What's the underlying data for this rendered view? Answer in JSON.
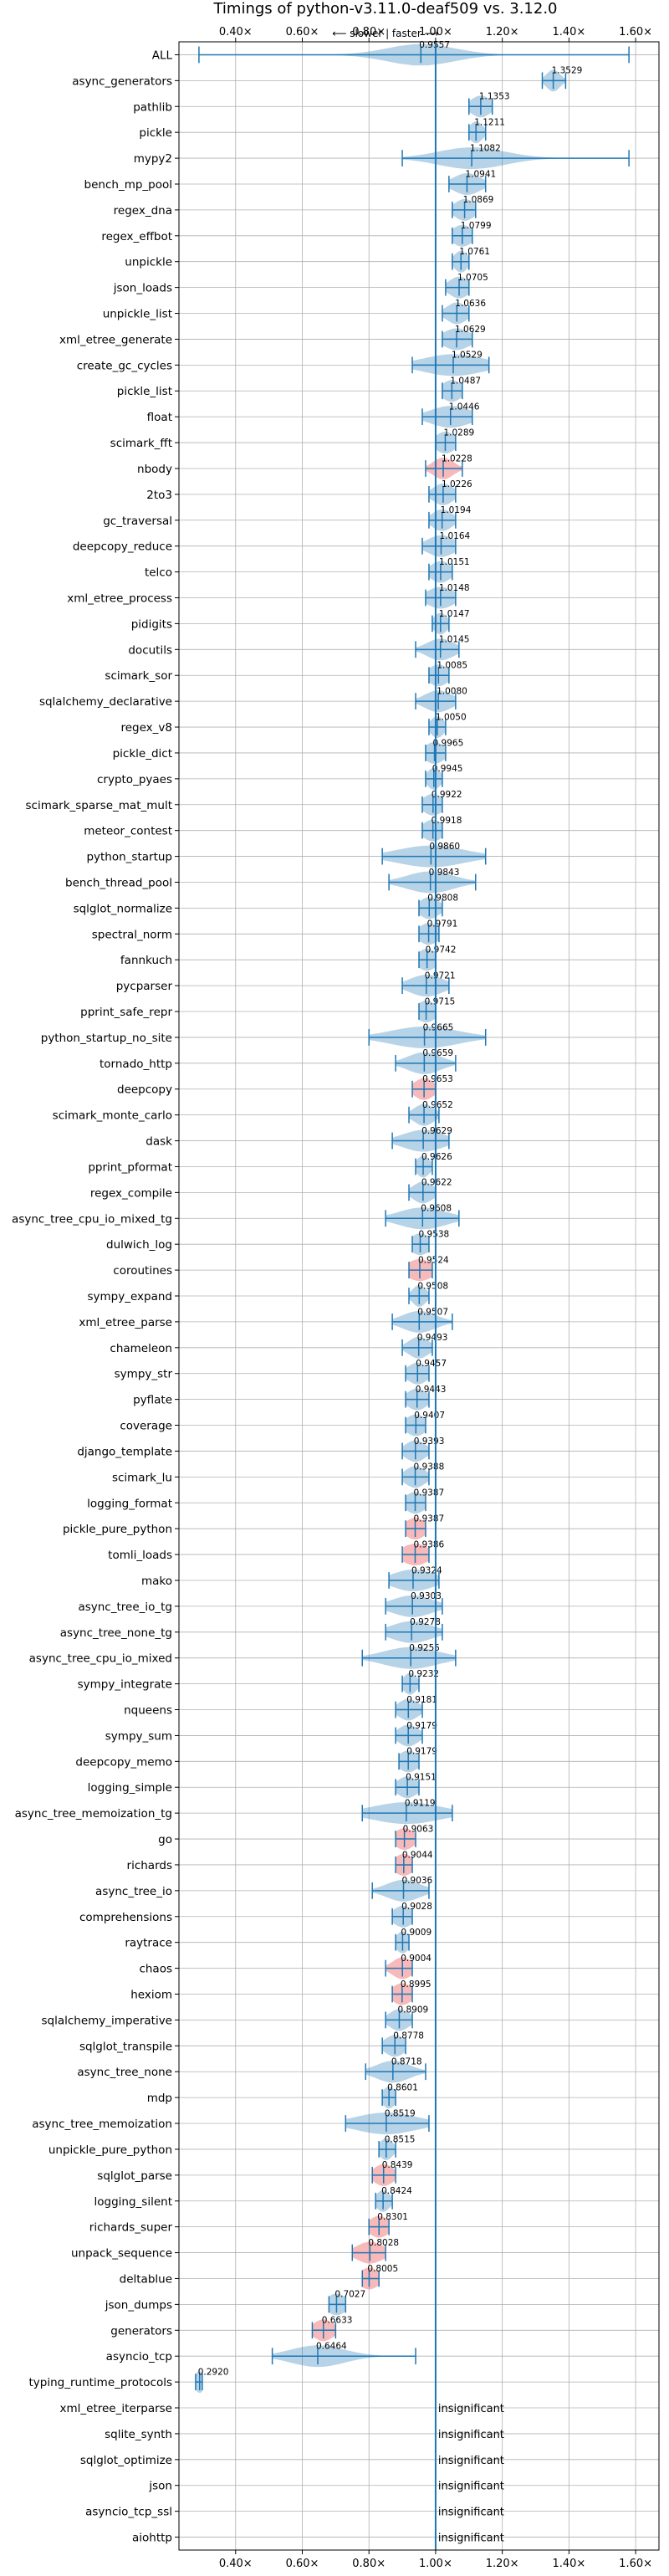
{
  "chart_data": {
    "type": "violin",
    "title": "Timings of python-v3.11.0-deaf509 vs. 3.12.0",
    "subtitle": "⟵ slower | faster ⟶",
    "x_ticks": [
      0.4,
      0.6,
      0.8,
      1.0,
      1.2,
      1.4,
      1.6
    ],
    "x_tick_labels": [
      "0.40×",
      "0.60×",
      "0.80×",
      "1.00×",
      "1.20×",
      "1.40×",
      "1.60×"
    ],
    "xlim": [
      0.23,
      1.67
    ],
    "reference_line": 1.0,
    "grid": true,
    "insignificant_text": "insignificant",
    "benchmarks": [
      {
        "name": "ALL",
        "value": 0.9557,
        "label": "0.9557",
        "lo": 0.29,
        "hi": 1.58,
        "spread": 0.1,
        "highlight": false
      },
      {
        "name": "async_generators",
        "value": 1.3529,
        "label": "1.3529",
        "lo": 1.32,
        "hi": 1.39,
        "spread": 0.02,
        "highlight": false
      },
      {
        "name": "pathlib",
        "value": 1.1353,
        "label": "1.1353",
        "lo": 1.1,
        "hi": 1.17,
        "spread": 0.03,
        "highlight": false
      },
      {
        "name": "pickle",
        "value": 1.1211,
        "label": "1.1211",
        "lo": 1.1,
        "hi": 1.15,
        "spread": 0.02,
        "highlight": false
      },
      {
        "name": "mypy2",
        "value": 1.1082,
        "label": "1.1082",
        "lo": 0.9,
        "hi": 1.58,
        "spread": 0.1,
        "highlight": false
      },
      {
        "name": "bench_mp_pool",
        "value": 1.0941,
        "label": "1.0941",
        "lo": 1.04,
        "hi": 1.15,
        "spread": 0.04,
        "highlight": false
      },
      {
        "name": "regex_dna",
        "value": 1.0869,
        "label": "1.0869",
        "lo": 1.05,
        "hi": 1.12,
        "spread": 0.03,
        "highlight": false
      },
      {
        "name": "regex_effbot",
        "value": 1.0799,
        "label": "1.0799",
        "lo": 1.05,
        "hi": 1.11,
        "spread": 0.03,
        "highlight": false
      },
      {
        "name": "unpickle",
        "value": 1.0761,
        "label": "1.0761",
        "lo": 1.05,
        "hi": 1.1,
        "spread": 0.02,
        "highlight": false
      },
      {
        "name": "json_loads",
        "value": 1.0705,
        "label": "1.0705",
        "lo": 1.03,
        "hi": 1.1,
        "spread": 0.03,
        "highlight": false
      },
      {
        "name": "unpickle_list",
        "value": 1.0636,
        "label": "1.0636",
        "lo": 1.02,
        "hi": 1.1,
        "spread": 0.03,
        "highlight": false
      },
      {
        "name": "xml_etree_generate",
        "value": 1.0629,
        "label": "1.0629",
        "lo": 1.02,
        "hi": 1.11,
        "spread": 0.04,
        "highlight": false
      },
      {
        "name": "create_gc_cycles",
        "value": 1.0529,
        "label": "1.0529",
        "lo": 0.93,
        "hi": 1.16,
        "spread": 0.09,
        "highlight": false
      },
      {
        "name": "pickle_list",
        "value": 1.0487,
        "label": "1.0487",
        "lo": 1.02,
        "hi": 1.08,
        "spread": 0.03,
        "highlight": false
      },
      {
        "name": "float",
        "value": 1.0446,
        "label": "1.0446",
        "lo": 0.96,
        "hi": 1.11,
        "spread": 0.06,
        "highlight": false
      },
      {
        "name": "scimark_fft",
        "value": 1.0289,
        "label": "1.0289",
        "lo": 1.0,
        "hi": 1.06,
        "spread": 0.03,
        "highlight": false
      },
      {
        "name": "nbody",
        "value": 1.0228,
        "label": "1.0228",
        "lo": 0.97,
        "hi": 1.08,
        "spread": 0.03,
        "highlight": true
      },
      {
        "name": "2to3",
        "value": 1.0226,
        "label": "1.0226",
        "lo": 0.98,
        "hi": 1.06,
        "spread": 0.03,
        "highlight": false
      },
      {
        "name": "gc_traversal",
        "value": 1.0194,
        "label": "1.0194",
        "lo": 0.98,
        "hi": 1.06,
        "spread": 0.03,
        "highlight": false
      },
      {
        "name": "deepcopy_reduce",
        "value": 1.0164,
        "label": "1.0164",
        "lo": 0.96,
        "hi": 1.06,
        "spread": 0.04,
        "highlight": false
      },
      {
        "name": "telco",
        "value": 1.0151,
        "label": "1.0151",
        "lo": 0.98,
        "hi": 1.05,
        "spread": 0.03,
        "highlight": false
      },
      {
        "name": "xml_etree_process",
        "value": 1.0148,
        "label": "1.0148",
        "lo": 0.97,
        "hi": 1.06,
        "spread": 0.04,
        "highlight": false
      },
      {
        "name": "pidigits",
        "value": 1.0147,
        "label": "1.0147",
        "lo": 0.99,
        "hi": 1.04,
        "spread": 0.02,
        "highlight": false
      },
      {
        "name": "docutils",
        "value": 1.0145,
        "label": "1.0145",
        "lo": 0.94,
        "hi": 1.07,
        "spread": 0.04,
        "highlight": false
      },
      {
        "name": "scimark_sor",
        "value": 1.0085,
        "label": "1.0085",
        "lo": 0.98,
        "hi": 1.04,
        "spread": 0.03,
        "highlight": false
      },
      {
        "name": "sqlalchemy_declarative",
        "value": 1.008,
        "label": "1.0080",
        "lo": 0.94,
        "hi": 1.06,
        "spread": 0.04,
        "highlight": false
      },
      {
        "name": "regex_v8",
        "value": 1.005,
        "label": "1.0050",
        "lo": 0.98,
        "hi": 1.03,
        "spread": 0.02,
        "highlight": false
      },
      {
        "name": "pickle_dict",
        "value": 0.9965,
        "label": "0.9965",
        "lo": 0.97,
        "hi": 1.03,
        "spread": 0.03,
        "highlight": false
      },
      {
        "name": "crypto_pyaes",
        "value": 0.9945,
        "label": "0.9945",
        "lo": 0.97,
        "hi": 1.02,
        "spread": 0.02,
        "highlight": false
      },
      {
        "name": "scimark_sparse_mat_mult",
        "value": 0.9922,
        "label": "0.9922",
        "lo": 0.96,
        "hi": 1.02,
        "spread": 0.03,
        "highlight": false
      },
      {
        "name": "meteor_contest",
        "value": 0.9918,
        "label": "0.9918",
        "lo": 0.96,
        "hi": 1.02,
        "spread": 0.03,
        "highlight": false
      },
      {
        "name": "python_startup",
        "value": 0.986,
        "label": "0.9860",
        "lo": 0.84,
        "hi": 1.15,
        "spread": 0.1,
        "highlight": false
      },
      {
        "name": "bench_thread_pool",
        "value": 0.9843,
        "label": "0.9843",
        "lo": 0.86,
        "hi": 1.12,
        "spread": 0.07,
        "highlight": false
      },
      {
        "name": "sqlglot_normalize",
        "value": 0.9808,
        "label": "0.9808",
        "lo": 0.95,
        "hi": 1.02,
        "spread": 0.03,
        "highlight": false
      },
      {
        "name": "spectral_norm",
        "value": 0.9791,
        "label": "0.9791",
        "lo": 0.95,
        "hi": 1.01,
        "spread": 0.03,
        "highlight": false
      },
      {
        "name": "fannkuch",
        "value": 0.9742,
        "label": "0.9742",
        "lo": 0.95,
        "hi": 1.0,
        "spread": 0.03,
        "highlight": false
      },
      {
        "name": "pycparser",
        "value": 0.9721,
        "label": "0.9721",
        "lo": 0.9,
        "hi": 1.04,
        "spread": 0.05,
        "highlight": false
      },
      {
        "name": "pprint_safe_repr",
        "value": 0.9715,
        "label": "0.9715",
        "lo": 0.95,
        "hi": 1.0,
        "spread": 0.03,
        "highlight": false
      },
      {
        "name": "python_startup_no_site",
        "value": 0.9665,
        "label": "0.9665",
        "lo": 0.8,
        "hi": 1.15,
        "spread": 0.1,
        "highlight": false
      },
      {
        "name": "tornado_http",
        "value": 0.9659,
        "label": "0.9659",
        "lo": 0.88,
        "hi": 1.06,
        "spread": 0.05,
        "highlight": false
      },
      {
        "name": "deepcopy",
        "value": 0.9653,
        "label": "0.9653",
        "lo": 0.93,
        "hi": 1.0,
        "spread": 0.03,
        "highlight": true
      },
      {
        "name": "scimark_monte_carlo",
        "value": 0.9652,
        "label": "0.9652",
        "lo": 0.92,
        "hi": 1.01,
        "spread": 0.03,
        "highlight": false
      },
      {
        "name": "dask",
        "value": 0.9629,
        "label": "0.9629",
        "lo": 0.87,
        "hi": 1.04,
        "spread": 0.06,
        "highlight": false
      },
      {
        "name": "pprint_pformat",
        "value": 0.9626,
        "label": "0.9626",
        "lo": 0.94,
        "hi": 0.99,
        "spread": 0.02,
        "highlight": false
      },
      {
        "name": "regex_compile",
        "value": 0.9622,
        "label": "0.9622",
        "lo": 0.92,
        "hi": 1.0,
        "spread": 0.03,
        "highlight": false
      },
      {
        "name": "async_tree_cpu_io_mixed_tg",
        "value": 0.9608,
        "label": "0.9608",
        "lo": 0.85,
        "hi": 1.07,
        "spread": 0.07,
        "highlight": false
      },
      {
        "name": "dulwich_log",
        "value": 0.9538,
        "label": "0.9538",
        "lo": 0.93,
        "hi": 0.98,
        "spread": 0.03,
        "highlight": false
      },
      {
        "name": "coroutines",
        "value": 0.9524,
        "label": "0.9524",
        "lo": 0.92,
        "hi": 0.99,
        "spread": 0.04,
        "highlight": true
      },
      {
        "name": "sympy_expand",
        "value": 0.9508,
        "label": "0.9508",
        "lo": 0.92,
        "hi": 0.98,
        "spread": 0.02,
        "highlight": false
      },
      {
        "name": "xml_etree_parse",
        "value": 0.9507,
        "label": "0.9507",
        "lo": 0.87,
        "hi": 1.05,
        "spread": 0.05,
        "highlight": false
      },
      {
        "name": "chameleon",
        "value": 0.9493,
        "label": "0.9493",
        "lo": 0.9,
        "hi": 0.99,
        "spread": 0.03,
        "highlight": false
      },
      {
        "name": "sympy_str",
        "value": 0.9457,
        "label": "0.9457",
        "lo": 0.91,
        "hi": 0.98,
        "spread": 0.03,
        "highlight": false
      },
      {
        "name": "pyflate",
        "value": 0.9443,
        "label": "0.9443",
        "lo": 0.91,
        "hi": 0.98,
        "spread": 0.03,
        "highlight": false
      },
      {
        "name": "coverage",
        "value": 0.9407,
        "label": "0.9407",
        "lo": 0.91,
        "hi": 0.97,
        "spread": 0.03,
        "highlight": false
      },
      {
        "name": "django_template",
        "value": 0.9393,
        "label": "0.9393",
        "lo": 0.9,
        "hi": 0.98,
        "spread": 0.03,
        "highlight": false
      },
      {
        "name": "scimark_lu",
        "value": 0.9388,
        "label": "0.9388",
        "lo": 0.9,
        "hi": 0.98,
        "spread": 0.03,
        "highlight": false
      },
      {
        "name": "logging_format",
        "value": 0.9387,
        "label": "0.9387",
        "lo": 0.91,
        "hi": 0.97,
        "spread": 0.03,
        "highlight": false
      },
      {
        "name": "pickle_pure_python",
        "value": 0.9387,
        "label": "0.9387",
        "lo": 0.91,
        "hi": 0.97,
        "spread": 0.03,
        "highlight": true
      },
      {
        "name": "tomli_loads",
        "value": 0.9386,
        "label": "0.9386",
        "lo": 0.9,
        "hi": 0.98,
        "spread": 0.04,
        "highlight": true
      },
      {
        "name": "mako",
        "value": 0.9324,
        "label": "0.9324",
        "lo": 0.86,
        "hi": 1.01,
        "spread": 0.06,
        "highlight": false
      },
      {
        "name": "async_tree_io_tg",
        "value": 0.9303,
        "label": "0.9303",
        "lo": 0.85,
        "hi": 1.02,
        "spread": 0.06,
        "highlight": false
      },
      {
        "name": "async_tree_none_tg",
        "value": 0.9278,
        "label": "0.9278",
        "lo": 0.85,
        "hi": 1.02,
        "spread": 0.06,
        "highlight": false
      },
      {
        "name": "async_tree_cpu_io_mixed",
        "value": 0.9255,
        "label": "0.9255",
        "lo": 0.78,
        "hi": 1.06,
        "spread": 0.08,
        "highlight": false
      },
      {
        "name": "sympy_integrate",
        "value": 0.9232,
        "label": "0.9232",
        "lo": 0.9,
        "hi": 0.95,
        "spread": 0.02,
        "highlight": false
      },
      {
        "name": "nqueens",
        "value": 0.9181,
        "label": "0.9181",
        "lo": 0.88,
        "hi": 0.96,
        "spread": 0.03,
        "highlight": false
      },
      {
        "name": "sympy_sum",
        "value": 0.9179,
        "label": "0.9179",
        "lo": 0.88,
        "hi": 0.96,
        "spread": 0.03,
        "highlight": false
      },
      {
        "name": "deepcopy_memo",
        "value": 0.9179,
        "label": "0.9179",
        "lo": 0.89,
        "hi": 0.95,
        "spread": 0.03,
        "highlight": false
      },
      {
        "name": "logging_simple",
        "value": 0.9151,
        "label": "0.9151",
        "lo": 0.88,
        "hi": 0.95,
        "spread": 0.03,
        "highlight": false
      },
      {
        "name": "async_tree_memoization_tg",
        "value": 0.9119,
        "label": "0.9119",
        "lo": 0.78,
        "hi": 1.05,
        "spread": 0.1,
        "highlight": false
      },
      {
        "name": "go",
        "value": 0.9063,
        "label": "0.9063",
        "lo": 0.88,
        "hi": 0.94,
        "spread": 0.03,
        "highlight": true
      },
      {
        "name": "richards",
        "value": 0.9044,
        "label": "0.9044",
        "lo": 0.88,
        "hi": 0.93,
        "spread": 0.03,
        "highlight": true
      },
      {
        "name": "async_tree_io",
        "value": 0.9036,
        "label": "0.9036",
        "lo": 0.81,
        "hi": 0.98,
        "spread": 0.05,
        "highlight": false
      },
      {
        "name": "comprehensions",
        "value": 0.9028,
        "label": "0.9028",
        "lo": 0.87,
        "hi": 0.93,
        "spread": 0.03,
        "highlight": false
      },
      {
        "name": "raytrace",
        "value": 0.9009,
        "label": "0.9009",
        "lo": 0.88,
        "hi": 0.92,
        "spread": 0.02,
        "highlight": false
      },
      {
        "name": "chaos",
        "value": 0.9004,
        "label": "0.9004",
        "lo": 0.85,
        "hi": 0.93,
        "spread": 0.03,
        "highlight": true
      },
      {
        "name": "hexiom",
        "value": 0.8995,
        "label": "0.8995",
        "lo": 0.87,
        "hi": 0.93,
        "spread": 0.03,
        "highlight": true
      },
      {
        "name": "sqlalchemy_imperative",
        "value": 0.8909,
        "label": "0.8909",
        "lo": 0.85,
        "hi": 0.93,
        "spread": 0.03,
        "highlight": false
      },
      {
        "name": "sqlglot_transpile",
        "value": 0.8778,
        "label": "0.8778",
        "lo": 0.84,
        "hi": 0.91,
        "spread": 0.03,
        "highlight": false
      },
      {
        "name": "async_tree_none",
        "value": 0.8718,
        "label": "0.8718",
        "lo": 0.79,
        "hi": 0.97,
        "spread": 0.05,
        "highlight": false
      },
      {
        "name": "mdp",
        "value": 0.8601,
        "label": "0.8601",
        "lo": 0.84,
        "hi": 0.88,
        "spread": 0.02,
        "highlight": false
      },
      {
        "name": "async_tree_memoization",
        "value": 0.8519,
        "label": "0.8519",
        "lo": 0.73,
        "hi": 0.98,
        "spread": 0.09,
        "highlight": false
      },
      {
        "name": "unpickle_pure_python",
        "value": 0.8515,
        "label": "0.8515",
        "lo": 0.83,
        "hi": 0.88,
        "spread": 0.02,
        "highlight": false
      },
      {
        "name": "sqlglot_parse",
        "value": 0.8439,
        "label": "0.8439",
        "lo": 0.81,
        "hi": 0.88,
        "spread": 0.03,
        "highlight": true
      },
      {
        "name": "logging_silent",
        "value": 0.8424,
        "label": "0.8424",
        "lo": 0.82,
        "hi": 0.87,
        "spread": 0.02,
        "highlight": false
      },
      {
        "name": "richards_super",
        "value": 0.8301,
        "label": "0.8301",
        "lo": 0.8,
        "hi": 0.86,
        "spread": 0.03,
        "highlight": true
      },
      {
        "name": "unpack_sequence",
        "value": 0.8028,
        "label": "0.8028",
        "lo": 0.75,
        "hi": 0.85,
        "spread": 0.04,
        "highlight": true
      },
      {
        "name": "deltablue",
        "value": 0.8005,
        "label": "0.8005",
        "lo": 0.78,
        "hi": 0.83,
        "spread": 0.03,
        "highlight": true
      },
      {
        "name": "json_dumps",
        "value": 0.7027,
        "label": "0.7027",
        "lo": 0.68,
        "hi": 0.73,
        "spread": 0.03,
        "highlight": false
      },
      {
        "name": "generators",
        "value": 0.6633,
        "label": "0.6633",
        "lo": 0.63,
        "hi": 0.7,
        "spread": 0.03,
        "highlight": true
      },
      {
        "name": "asyncio_tcp",
        "value": 0.6464,
        "label": "0.6464",
        "lo": 0.51,
        "hi": 0.94,
        "spread": 0.08,
        "highlight": false
      },
      {
        "name": "typing_runtime_protocols",
        "value": 0.292,
        "label": "0.2920",
        "lo": 0.28,
        "hi": 0.3,
        "spread": 0.015,
        "highlight": false
      },
      {
        "name": "xml_etree_iterparse",
        "value": null,
        "label": "",
        "insignificant": true
      },
      {
        "name": "sqlite_synth",
        "value": null,
        "label": "",
        "insignificant": true
      },
      {
        "name": "sqlglot_optimize",
        "value": null,
        "label": "",
        "insignificant": true
      },
      {
        "name": "json",
        "value": null,
        "label": "",
        "insignificant": true
      },
      {
        "name": "asyncio_tcp_ssl",
        "value": null,
        "label": "",
        "insignificant": true
      },
      {
        "name": "aiohttp",
        "value": null,
        "label": "",
        "insignificant": true
      }
    ]
  }
}
